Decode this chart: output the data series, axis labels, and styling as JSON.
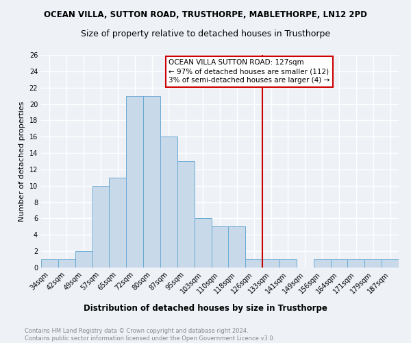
{
  "title": "OCEAN VILLA, SUTTON ROAD, TRUSTHORPE, MABLETHORPE, LN12 2PD",
  "subtitle": "Size of property relative to detached houses in Trusthorpe",
  "xlabel": "Distribution of detached houses by size in Trusthorpe",
  "ylabel": "Number of detached properties",
  "categories": [
    "34sqm",
    "42sqm",
    "49sqm",
    "57sqm",
    "65sqm",
    "72sqm",
    "80sqm",
    "87sqm",
    "95sqm",
    "103sqm",
    "110sqm",
    "118sqm",
    "126sqm",
    "133sqm",
    "141sqm",
    "149sqm",
    "156sqm",
    "164sqm",
    "171sqm",
    "179sqm",
    "187sqm"
  ],
  "values": [
    1,
    1,
    2,
    10,
    11,
    21,
    21,
    16,
    13,
    6,
    5,
    5,
    1,
    1,
    1,
    0,
    1,
    1,
    1,
    1,
    1
  ],
  "bar_color": "#c8d9ea",
  "bar_edge_color": "#6aaad4",
  "vline_x": 12.5,
  "vline_color": "#cc0000",
  "annotation_text": "OCEAN VILLA SUTTON ROAD: 127sqm\n← 97% of detached houses are smaller (112)\n3% of semi-detached houses are larger (4) →",
  "annotation_box_color": "#cc0000",
  "ylim": [
    0,
    26
  ],
  "yticks": [
    0,
    2,
    4,
    6,
    8,
    10,
    12,
    14,
    16,
    18,
    20,
    22,
    24,
    26
  ],
  "background_color": "#eef2f7",
  "grid_color": "#ffffff",
  "footnote": "Contains HM Land Registry data © Crown copyright and database right 2024.\nContains public sector information licensed under the Open Government Licence v3.0.",
  "title_fontsize": 8.5,
  "subtitle_fontsize": 9.0,
  "xlabel_fontsize": 8.5,
  "ylabel_fontsize": 8.0,
  "tick_fontsize": 7.0,
  "annot_fontsize": 7.5,
  "footnote_fontsize": 6.0,
  "footnote_color": "#888888"
}
